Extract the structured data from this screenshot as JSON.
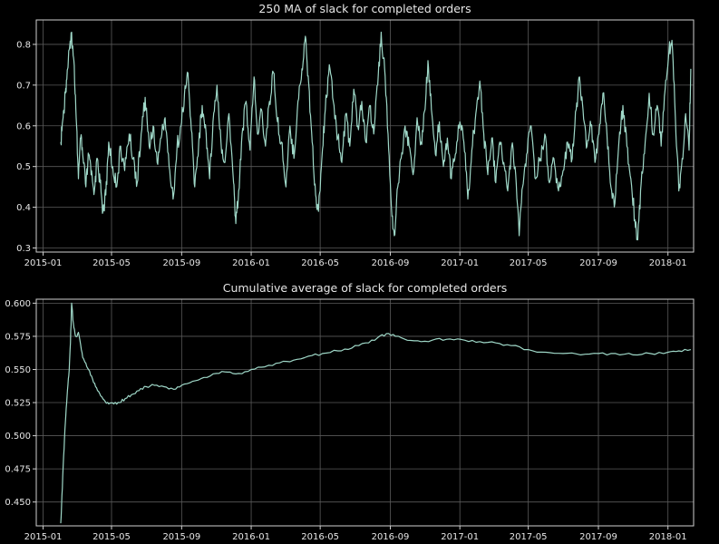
{
  "colors": {
    "background": "#000000",
    "line": "#9fd8c8",
    "grid": "#5a5a5a",
    "text": "#e6e6e6"
  },
  "chart_data": [
    {
      "type": "line",
      "title": "250 MA of slack for completed orders",
      "xlabel": "",
      "ylabel": "",
      "x_axis": "date",
      "xlim": [
        "2014-12-20",
        "2018-02-15"
      ],
      "ylim": [
        0.29,
        0.86
      ],
      "x_ticks": [
        "2015-01",
        "2015-05",
        "2015-09",
        "2016-01",
        "2016-05",
        "2016-09",
        "2017-01",
        "2017-05",
        "2017-09",
        "2018-01"
      ],
      "y_ticks": [
        0.3,
        0.4,
        0.5,
        0.6,
        0.7,
        0.8
      ],
      "grid": true,
      "series": [
        {
          "color": "#9fd8c8",
          "points": [
            [
              "2015-02-01",
              0.56
            ],
            [
              "2015-02-05",
              0.62
            ],
            [
              "2015-02-09",
              0.68
            ],
            [
              "2015-02-13",
              0.74
            ],
            [
              "2015-02-17",
              0.8
            ],
            [
              "2015-02-20",
              0.83
            ],
            [
              "2015-02-24",
              0.76
            ],
            [
              "2015-02-28",
              0.62
            ],
            [
              "2015-03-04",
              0.47
            ],
            [
              "2015-03-08",
              0.57
            ],
            [
              "2015-03-12",
              0.52
            ],
            [
              "2015-03-17",
              0.45
            ],
            [
              "2015-03-22",
              0.53
            ],
            [
              "2015-03-27",
              0.49
            ],
            [
              "2015-04-01",
              0.44
            ],
            [
              "2015-04-06",
              0.52
            ],
            [
              "2015-04-11",
              0.46
            ],
            [
              "2015-04-16",
              0.39
            ],
            [
              "2015-04-21",
              0.43
            ],
            [
              "2015-04-26",
              0.56
            ],
            [
              "2015-05-03",
              0.5
            ],
            [
              "2015-05-10",
              0.45
            ],
            [
              "2015-05-17",
              0.55
            ],
            [
              "2015-05-24",
              0.49
            ],
            [
              "2015-06-01",
              0.58
            ],
            [
              "2015-06-08",
              0.52
            ],
            [
              "2015-06-15",
              0.46
            ],
            [
              "2015-06-22",
              0.58
            ],
            [
              "2015-06-29",
              0.67
            ],
            [
              "2015-07-06",
              0.55
            ],
            [
              "2015-07-13",
              0.6
            ],
            [
              "2015-07-20",
              0.51
            ],
            [
              "2015-07-27",
              0.57
            ],
            [
              "2015-08-03",
              0.62
            ],
            [
              "2015-08-10",
              0.5
            ],
            [
              "2015-08-17",
              0.42
            ],
            [
              "2015-08-24",
              0.55
            ],
            [
              "2015-08-31",
              0.6
            ],
            [
              "2015-09-06",
              0.68
            ],
            [
              "2015-09-12",
              0.73
            ],
            [
              "2015-09-18",
              0.59
            ],
            [
              "2015-09-24",
              0.45
            ],
            [
              "2015-10-01",
              0.56
            ],
            [
              "2015-10-07",
              0.65
            ],
            [
              "2015-10-14",
              0.58
            ],
            [
              "2015-10-20",
              0.47
            ],
            [
              "2015-10-26",
              0.61
            ],
            [
              "2015-11-02",
              0.7
            ],
            [
              "2015-11-09",
              0.56
            ],
            [
              "2015-11-16",
              0.51
            ],
            [
              "2015-11-23",
              0.63
            ],
            [
              "2015-12-01",
              0.46
            ],
            [
              "2015-12-05",
              0.36
            ],
            [
              "2015-12-10",
              0.44
            ],
            [
              "2015-12-16",
              0.58
            ],
            [
              "2015-12-23",
              0.66
            ],
            [
              "2015-12-30",
              0.54
            ],
            [
              "2016-01-06",
              0.72
            ],
            [
              "2016-01-12",
              0.58
            ],
            [
              "2016-01-19",
              0.64
            ],
            [
              "2016-01-26",
              0.55
            ],
            [
              "2016-02-02",
              0.66
            ],
            [
              "2016-02-09",
              0.73
            ],
            [
              "2016-02-16",
              0.61
            ],
            [
              "2016-02-23",
              0.56
            ],
            [
              "2016-03-02",
              0.45
            ],
            [
              "2016-03-09",
              0.6
            ],
            [
              "2016-03-16",
              0.52
            ],
            [
              "2016-03-23",
              0.66
            ],
            [
              "2016-03-30",
              0.74
            ],
            [
              "2016-04-05",
              0.82
            ],
            [
              "2016-04-11",
              0.7
            ],
            [
              "2016-04-17",
              0.56
            ],
            [
              "2016-04-23",
              0.43
            ],
            [
              "2016-04-28",
              0.39
            ],
            [
              "2016-05-04",
              0.52
            ],
            [
              "2016-05-10",
              0.64
            ],
            [
              "2016-05-17",
              0.75
            ],
            [
              "2016-05-24",
              0.66
            ],
            [
              "2016-06-01",
              0.57
            ],
            [
              "2016-06-08",
              0.51
            ],
            [
              "2016-06-15",
              0.63
            ],
            [
              "2016-06-22",
              0.55
            ],
            [
              "2016-06-29",
              0.69
            ],
            [
              "2016-07-06",
              0.6
            ],
            [
              "2016-07-13",
              0.66
            ],
            [
              "2016-07-20",
              0.56
            ],
            [
              "2016-07-27",
              0.65
            ],
            [
              "2016-08-03",
              0.58
            ],
            [
              "2016-08-10",
              0.7
            ],
            [
              "2016-08-16",
              0.83
            ],
            [
              "2016-08-22",
              0.74
            ],
            [
              "2016-08-28",
              0.58
            ],
            [
              "2016-09-03",
              0.4
            ],
            [
              "2016-09-08",
              0.33
            ],
            [
              "2016-09-14",
              0.45
            ],
            [
              "2016-09-20",
              0.52
            ],
            [
              "2016-09-27",
              0.6
            ],
            [
              "2016-10-04",
              0.55
            ],
            [
              "2016-10-11",
              0.48
            ],
            [
              "2016-10-18",
              0.62
            ],
            [
              "2016-10-25",
              0.56
            ],
            [
              "2016-11-01",
              0.64
            ],
            [
              "2016-11-06",
              0.76
            ],
            [
              "2016-11-12",
              0.64
            ],
            [
              "2016-11-19",
              0.53
            ],
            [
              "2016-11-26",
              0.61
            ],
            [
              "2016-12-03",
              0.5
            ],
            [
              "2016-12-10",
              0.57
            ],
            [
              "2016-12-17",
              0.47
            ],
            [
              "2016-12-24",
              0.53
            ],
            [
              "2017-01-01",
              0.61
            ],
            [
              "2017-01-08",
              0.56
            ],
            [
              "2017-01-15",
              0.42
            ],
            [
              "2017-01-22",
              0.54
            ],
            [
              "2017-01-29",
              0.63
            ],
            [
              "2017-02-05",
              0.71
            ],
            [
              "2017-02-12",
              0.58
            ],
            [
              "2017-02-19",
              0.48
            ],
            [
              "2017-02-26",
              0.57
            ],
            [
              "2017-03-05",
              0.46
            ],
            [
              "2017-03-12",
              0.56
            ],
            [
              "2017-03-19",
              0.51
            ],
            [
              "2017-03-26",
              0.44
            ],
            [
              "2017-04-02",
              0.55
            ],
            [
              "2017-04-09",
              0.48
            ],
            [
              "2017-04-15",
              0.33
            ],
            [
              "2017-04-21",
              0.45
            ],
            [
              "2017-04-28",
              0.53
            ],
            [
              "2017-05-06",
              0.6
            ],
            [
              "2017-05-14",
              0.47
            ],
            [
              "2017-05-22",
              0.52
            ],
            [
              "2017-05-30",
              0.58
            ],
            [
              "2017-06-07",
              0.46
            ],
            [
              "2017-06-15",
              0.52
            ],
            [
              "2017-06-23",
              0.44
            ],
            [
              "2017-07-01",
              0.49
            ],
            [
              "2017-07-09",
              0.56
            ],
            [
              "2017-07-17",
              0.52
            ],
            [
              "2017-07-24",
              0.64
            ],
            [
              "2017-07-30",
              0.72
            ],
            [
              "2017-08-05",
              0.64
            ],
            [
              "2017-08-12",
              0.55
            ],
            [
              "2017-08-19",
              0.6
            ],
            [
              "2017-08-26",
              0.51
            ],
            [
              "2017-09-02",
              0.58
            ],
            [
              "2017-09-09",
              0.68
            ],
            [
              "2017-09-16",
              0.58
            ],
            [
              "2017-09-23",
              0.45
            ],
            [
              "2017-09-30",
              0.41
            ],
            [
              "2017-10-07",
              0.56
            ],
            [
              "2017-10-14",
              0.65
            ],
            [
              "2017-10-21",
              0.55
            ],
            [
              "2017-10-28",
              0.47
            ],
            [
              "2017-11-04",
              0.37
            ],
            [
              "2017-11-09",
              0.32
            ],
            [
              "2017-11-15",
              0.46
            ],
            [
              "2017-11-22",
              0.56
            ],
            [
              "2017-11-29",
              0.68
            ],
            [
              "2017-12-06",
              0.58
            ],
            [
              "2017-12-13",
              0.65
            ],
            [
              "2017-12-20",
              0.55
            ],
            [
              "2017-12-27",
              0.69
            ],
            [
              "2018-01-03",
              0.79
            ],
            [
              "2018-01-08",
              0.81
            ],
            [
              "2018-01-14",
              0.62
            ],
            [
              "2018-01-20",
              0.44
            ],
            [
              "2018-01-26",
              0.52
            ],
            [
              "2018-02-01",
              0.63
            ],
            [
              "2018-02-07",
              0.54
            ],
            [
              "2018-02-10",
              0.74
            ]
          ]
        }
      ]
    },
    {
      "type": "line",
      "title": "Cumulative average of slack for completed orders",
      "xlabel": "",
      "ylabel": "",
      "x_axis": "date",
      "xlim": [
        "2014-12-20",
        "2018-02-15"
      ],
      "ylim": [
        0.432,
        0.603
      ],
      "x_ticks": [
        "2015-01",
        "2015-05",
        "2015-09",
        "2016-01",
        "2016-05",
        "2016-09",
        "2017-01",
        "2017-05",
        "2017-09",
        "2018-01"
      ],
      "y_ticks": [
        0.45,
        0.475,
        0.5,
        0.525,
        0.55,
        0.575,
        0.6
      ],
      "grid": true,
      "series": [
        {
          "color": "#9fd8c8",
          "points": [
            [
              "2015-02-01",
              0.434
            ],
            [
              "2015-02-03",
              0.455
            ],
            [
              "2015-02-06",
              0.485
            ],
            [
              "2015-02-09",
              0.51
            ],
            [
              "2015-02-12",
              0.53
            ],
            [
              "2015-02-15",
              0.545
            ],
            [
              "2015-02-18",
              0.57
            ],
            [
              "2015-02-20",
              0.6
            ],
            [
              "2015-02-23",
              0.585
            ],
            [
              "2015-02-27",
              0.575
            ],
            [
              "2015-03-04",
              0.578
            ],
            [
              "2015-03-09",
              0.565
            ],
            [
              "2015-03-14",
              0.557
            ],
            [
              "2015-03-20",
              0.551
            ],
            [
              "2015-03-27",
              0.545
            ],
            [
              "2015-04-03",
              0.537
            ],
            [
              "2015-04-10",
              0.532
            ],
            [
              "2015-04-18",
              0.527
            ],
            [
              "2015-04-26",
              0.524
            ],
            [
              "2015-05-05",
              0.524
            ],
            [
              "2015-05-15",
              0.525
            ],
            [
              "2015-05-25",
              0.528
            ],
            [
              "2015-06-05",
              0.531
            ],
            [
              "2015-06-18",
              0.534
            ],
            [
              "2015-07-01",
              0.537
            ],
            [
              "2015-07-15",
              0.538
            ],
            [
              "2015-08-01",
              0.537
            ],
            [
              "2015-08-18",
              0.535
            ],
            [
              "2015-09-01",
              0.538
            ],
            [
              "2015-09-20",
              0.541
            ],
            [
              "2015-10-10",
              0.544
            ],
            [
              "2015-11-01",
              0.547
            ],
            [
              "2015-11-20",
              0.548
            ],
            [
              "2015-12-10",
              0.547
            ],
            [
              "2016-01-01",
              0.55
            ],
            [
              "2016-01-25",
              0.552
            ],
            [
              "2016-02-20",
              0.555
            ],
            [
              "2016-03-15",
              0.557
            ],
            [
              "2016-04-10",
              0.56
            ],
            [
              "2016-05-05",
              0.562
            ],
            [
              "2016-06-01",
              0.564
            ],
            [
              "2016-06-25",
              0.566
            ],
            [
              "2016-07-20",
              0.57
            ],
            [
              "2016-08-10",
              0.574
            ],
            [
              "2016-08-25",
              0.577
            ],
            [
              "2016-09-10",
              0.575
            ],
            [
              "2016-10-01",
              0.572
            ],
            [
              "2016-10-25",
              0.571
            ],
            [
              "2016-11-20",
              0.573
            ],
            [
              "2016-12-15",
              0.573
            ],
            [
              "2017-01-10",
              0.572
            ],
            [
              "2017-02-05",
              0.571
            ],
            [
              "2017-03-05",
              0.57
            ],
            [
              "2017-04-01",
              0.568
            ],
            [
              "2017-05-01",
              0.565
            ],
            [
              "2017-06-01",
              0.563
            ],
            [
              "2017-07-01",
              0.562
            ],
            [
              "2017-08-01",
              0.561
            ],
            [
              "2017-09-01",
              0.562
            ],
            [
              "2017-10-01",
              0.562
            ],
            [
              "2017-11-01",
              0.561
            ],
            [
              "2017-12-01",
              0.562
            ],
            [
              "2018-01-01",
              0.563
            ],
            [
              "2018-01-20",
              0.564
            ],
            [
              "2018-02-10",
              0.565
            ]
          ]
        }
      ]
    }
  ]
}
